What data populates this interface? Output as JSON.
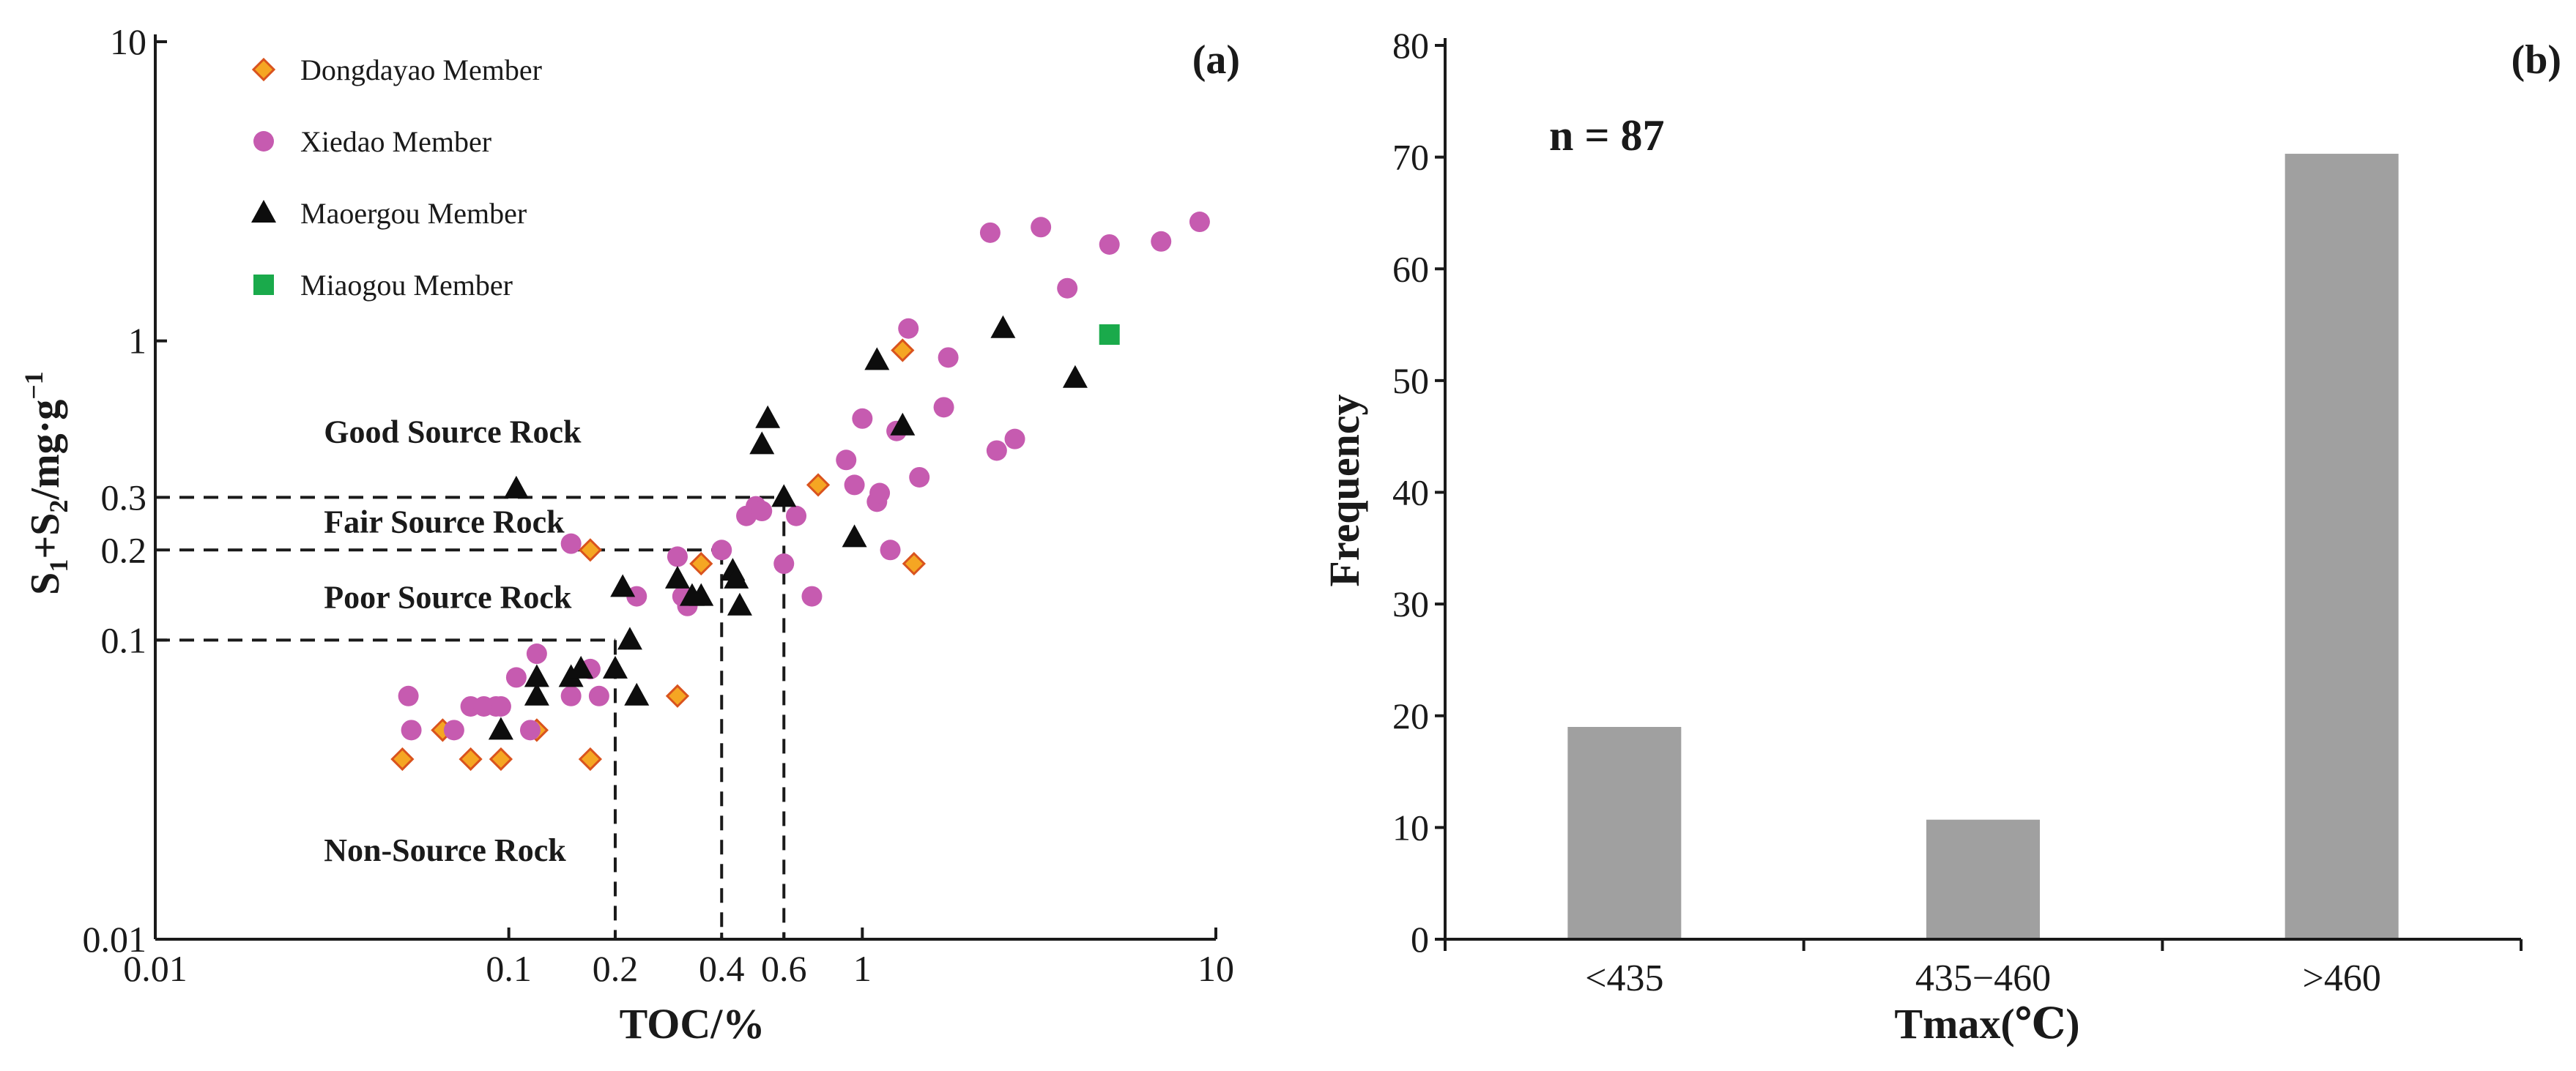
{
  "colors": {
    "dongdayao_fill": "#f5a623",
    "dongdayao_stroke": "#d9531e",
    "xiedao": "#c65bb0",
    "maoergou": "#0d0d0d",
    "miaogou": "#1aaa4b",
    "bar": "#a0a0a0",
    "axis": "#1a1a1a"
  },
  "chart_data": [
    {
      "type": "scatter",
      "panel_label": "(a)",
      "xlabel": "TOC/%",
      "ylabel": {
        "main": "S",
        "sub1": "1",
        "plus": "+S",
        "sub2": "2",
        "unit": "/mg·g",
        "sup": "−1"
      },
      "xscale": "log",
      "yscale": "log",
      "xlim": [
        0.01,
        10
      ],
      "ylim": [
        0.01,
        10
      ],
      "xticks": [
        {
          "value": 0.01,
          "label": "0.01"
        },
        {
          "value": 0.1,
          "label": "0.1"
        },
        {
          "value": 0.2,
          "label": "0.2"
        },
        {
          "value": 0.4,
          "label": "0.4"
        },
        {
          "value": 0.6,
          "label": "0.6"
        },
        {
          "value": 1,
          "label": "1"
        },
        {
          "value": 10,
          "label": "10"
        }
      ],
      "yticks": [
        {
          "value": 0.01,
          "label": "0.01"
        },
        {
          "value": 0.1,
          "label": "0.1"
        },
        {
          "value": 0.2,
          "label": "0.2"
        },
        {
          "value": 0.3,
          "label": "0.3"
        },
        {
          "value": 1,
          "label": "1"
        },
        {
          "value": 10,
          "label": "10"
        }
      ],
      "thresholds": [
        {
          "toc": 0.2,
          "s": 0.1
        },
        {
          "toc": 0.4,
          "s": 0.2
        },
        {
          "toc": 0.6,
          "s": 0.3
        }
      ],
      "zones": [
        {
          "label": "Good Source Rock",
          "toc": 0.03,
          "s": 0.5
        },
        {
          "label": "Fair Source Rock",
          "toc": 0.03,
          "s": 0.25
        },
        {
          "label": "Poor Source Rock",
          "toc": 0.03,
          "s": 0.14
        },
        {
          "label": "Non-Source Rock",
          "toc": 0.03,
          "s": 0.02
        }
      ],
      "legend": {
        "placement": "top-left",
        "items": [
          {
            "name": "Dongdayao Member",
            "marker": "diamond"
          },
          {
            "name": "Xiedao Member",
            "marker": "circle"
          },
          {
            "name": "Maoergou Member",
            "marker": "triangle"
          },
          {
            "name": "Miaogou Member",
            "marker": "square"
          }
        ]
      },
      "series": [
        {
          "name": "Dongdayao Member",
          "marker": "diamond",
          "points": [
            [
              0.05,
              0.04
            ],
            [
              0.065,
              0.05
            ],
            [
              0.078,
              0.04
            ],
            [
              0.095,
              0.04
            ],
            [
              0.12,
              0.05
            ],
            [
              0.17,
              0.04
            ],
            [
              0.17,
              0.2
            ],
            [
              0.3,
              0.065
            ],
            [
              0.35,
              0.18
            ],
            [
              0.75,
              0.33
            ],
            [
              1.3,
              0.93
            ],
            [
              1.4,
              0.18
            ]
          ]
        },
        {
          "name": "Xiedao Member",
          "marker": "circle",
          "points": [
            [
              0.052,
              0.065
            ],
            [
              0.053,
              0.05
            ],
            [
              0.07,
              0.05
            ],
            [
              0.078,
              0.06
            ],
            [
              0.085,
              0.06
            ],
            [
              0.092,
              0.06
            ],
            [
              0.095,
              0.06
            ],
            [
              0.105,
              0.075
            ],
            [
              0.115,
              0.05
            ],
            [
              0.12,
              0.09
            ],
            [
              0.15,
              0.065
            ],
            [
              0.15,
              0.21
            ],
            [
              0.17,
              0.08
            ],
            [
              0.18,
              0.065
            ],
            [
              0.23,
              0.14
            ],
            [
              0.3,
              0.19
            ],
            [
              0.31,
              0.14
            ],
            [
              0.32,
              0.13
            ],
            [
              0.4,
              0.2
            ],
            [
              0.47,
              0.26
            ],
            [
              0.5,
              0.28
            ],
            [
              0.52,
              0.27
            ],
            [
              0.6,
              0.18
            ],
            [
              0.65,
              0.26
            ],
            [
              0.72,
              0.14
            ],
            [
              0.9,
              0.4
            ],
            [
              0.95,
              0.33
            ],
            [
              1.0,
              0.55
            ],
            [
              1.1,
              0.29
            ],
            [
              1.12,
              0.31
            ],
            [
              1.2,
              0.2
            ],
            [
              1.25,
              0.5
            ],
            [
              1.35,
              1.1
            ],
            [
              1.45,
              0.35
            ],
            [
              1.7,
              0.6
            ],
            [
              1.75,
              0.88
            ],
            [
              2.3,
              2.3
            ],
            [
              2.4,
              0.43
            ],
            [
              2.7,
              0.47
            ],
            [
              3.2,
              2.4
            ],
            [
              3.8,
              1.5
            ],
            [
              5.0,
              2.1
            ],
            [
              7.0,
              2.15
            ],
            [
              9.0,
              2.5
            ]
          ]
        },
        {
          "name": "Maoergou Member",
          "marker": "triangle",
          "points": [
            [
              0.095,
              0.05
            ],
            [
              0.105,
              0.32
            ],
            [
              0.12,
              0.075
            ],
            [
              0.12,
              0.065
            ],
            [
              0.15,
              0.075
            ],
            [
              0.16,
              0.08
            ],
            [
              0.2,
              0.08
            ],
            [
              0.21,
              0.15
            ],
            [
              0.22,
              0.1
            ],
            [
              0.23,
              0.065
            ],
            [
              0.3,
              0.16
            ],
            [
              0.33,
              0.14
            ],
            [
              0.35,
              0.14
            ],
            [
              0.43,
              0.17
            ],
            [
              0.44,
              0.16
            ],
            [
              0.45,
              0.13
            ],
            [
              0.52,
              0.45
            ],
            [
              0.54,
              0.55
            ],
            [
              0.6,
              0.3
            ],
            [
              0.95,
              0.22
            ],
            [
              1.1,
              0.86
            ],
            [
              1.3,
              0.52
            ],
            [
              2.5,
              1.1
            ],
            [
              4.0,
              0.75
            ]
          ]
        },
        {
          "name": "Miaogou Member",
          "marker": "square",
          "points": [
            [
              5.0,
              1.05
            ]
          ]
        }
      ]
    },
    {
      "type": "bar",
      "panel_label": "(b)",
      "annotation": "n = 87",
      "xlabel": "Tmax(℃)",
      "ylabel": "Frequency",
      "categories": [
        "<435",
        "435−460",
        ">460"
      ],
      "values": [
        19,
        10.7,
        70.3
      ],
      "ylim": [
        0,
        80
      ],
      "yticks": [
        0,
        10,
        20,
        30,
        40,
        50,
        60,
        70,
        80
      ]
    }
  ]
}
